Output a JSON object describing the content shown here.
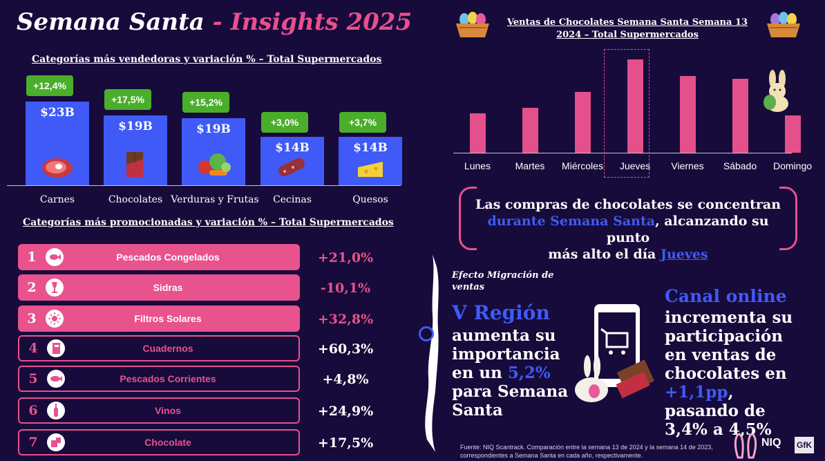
{
  "title": {
    "part1": "Semana Santa",
    "separator": " - ",
    "part2": "Insights 2025"
  },
  "top_categories": {
    "heading": "Categorías más vendedoras y variación % – Total Supermercados",
    "items": [
      {
        "name": "Carnes",
        "value": "$23B",
        "change": "+12,4%",
        "icon": "meat-icon"
      },
      {
        "name": "Chocolates",
        "value": "$19B",
        "change": "+17,5%",
        "icon": "chocolate-bar-icon"
      },
      {
        "name": "Verduras y Frutas",
        "value": "$19B",
        "change": "+15,2%",
        "icon": "vegetables-icon"
      },
      {
        "name": "Cecinas",
        "value": "$14B",
        "change": "+3,0%",
        "icon": "sausage-icon"
      },
      {
        "name": "Quesos",
        "value": "$14B",
        "change": "+3,7%",
        "icon": "cheese-icon"
      }
    ]
  },
  "promo_categories": {
    "heading": "Categorías más promocionadas y variación % – Total Supermercados",
    "items": [
      {
        "rank": "1",
        "name": "Pescados Congelados",
        "change": "+21,0%",
        "icon": "frozen-fish-icon"
      },
      {
        "rank": "2",
        "name": "Sidras",
        "change": "-10,1%",
        "icon": "cider-glass-icon"
      },
      {
        "rank": "3",
        "name": "Filtros Solares",
        "change": "+32,8%",
        "icon": "sun-icon"
      },
      {
        "rank": "4",
        "name": "Cuadernos",
        "change": "+60,3%",
        "icon": "notebook-icon"
      },
      {
        "rank": "5",
        "name": "Pescados Corrientes",
        "change": "+4,8%",
        "icon": "fish-icon"
      },
      {
        "rank": "6",
        "name": "Vinos",
        "change": "+24,9%",
        "icon": "wine-bottle-icon"
      },
      {
        "rank": "7",
        "name": "Chocolate",
        "change": "+17,5%",
        "icon": "chocolate-icon"
      }
    ]
  },
  "chart_data": {
    "type": "bar",
    "title": "Ventas de Chocolates Semana Santa Semana 13 2024 – Total Supermercados",
    "categories": [
      "Lunes",
      "Martes",
      "Miércoles",
      "Jueves",
      "Viernes",
      "Sábado",
      "Domingo"
    ],
    "values": [
      42,
      48,
      65,
      100,
      82,
      79,
      40
    ],
    "highlight": "Jueves",
    "bar_color": "#e4508b",
    "ylim": [
      0,
      100
    ]
  },
  "insight": {
    "line1": "Las compras de chocolates se concentran",
    "highlight1": "durante Semana Santa",
    "line2": ", alcanzando su punto",
    "line3": "más alto el día ",
    "highlight2": "Jueves"
  },
  "migration": {
    "label": "Efecto Migración de ventas",
    "region": "V Región",
    "text1": "aumenta su importancia en un ",
    "value": "5,2%",
    "text2": "para Semana Santa"
  },
  "online": {
    "heading": "Canal online",
    "text1": "incrementa su participación en ventas de chocolates en",
    "value": "+1,1pp",
    "text2": ", pasando de 3,4% a 4,5%"
  },
  "footnote": "Fuente: NIQ Scantrack. Comparación entre la semana 13 de 2024 y la semana 14 de 2023, correspondientes a Semana Santa en cada año, respectivamente.",
  "logos": {
    "brand1": "NIQ",
    "brand2": "GfK"
  },
  "colors": {
    "background": "#170b3b",
    "pink": "#e8528d",
    "blue": "#3f5af7",
    "green": "#4aae2b"
  }
}
